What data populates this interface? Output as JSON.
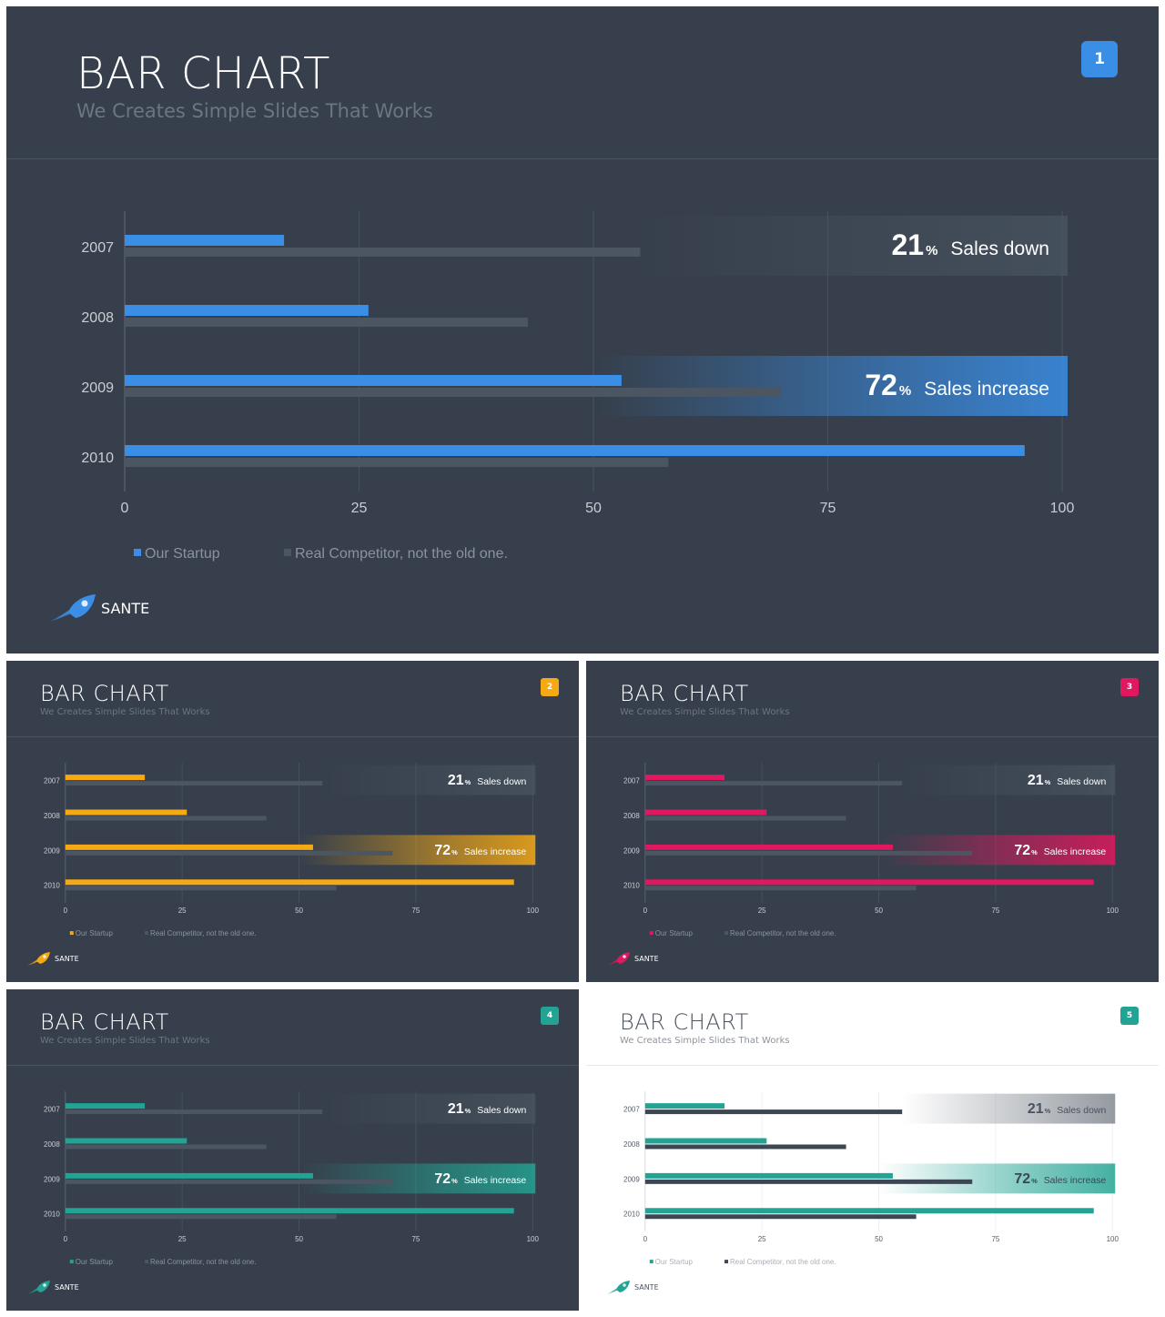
{
  "slides": [
    {
      "title": "BAR CHART",
      "subtitle": "We Creates Simple Slides That Works",
      "page_number": "1",
      "accent": "#3a8ee6",
      "theme": "dark",
      "brand": "SANTE"
    },
    {
      "title": "BAR CHART",
      "subtitle": "We Creates Simple Slides That Works",
      "page_number": "2",
      "accent": "#f5a914",
      "theme": "dark",
      "brand": "SANTE"
    },
    {
      "title": "BAR CHART",
      "subtitle": "We Creates Simple Slides That Works",
      "page_number": "3",
      "accent": "#e0185f",
      "theme": "dark",
      "brand": "SANTE"
    },
    {
      "title": "BAR CHART",
      "subtitle": "We Creates Simple Slides That Works",
      "page_number": "4",
      "accent": "#23a393",
      "theme": "dark",
      "brand": "SANTE"
    },
    {
      "title": "BAR CHART",
      "subtitle": "We Creates Simple Slides That Works",
      "page_number": "5",
      "accent": "#23a393",
      "theme": "light",
      "brand": "SANTE"
    }
  ],
  "chart_data": {
    "type": "bar",
    "orientation": "horizontal",
    "categories": [
      "2007",
      "2008",
      "2009",
      "2010"
    ],
    "series": [
      {
        "name": "Our Startup",
        "values": [
          17,
          26,
          53,
          96
        ]
      },
      {
        "name": "Real Competitor, not the old one.",
        "values": [
          55,
          43,
          70,
          58
        ]
      }
    ],
    "xlim": [
      0,
      100
    ],
    "xticks": [
      "0",
      "25",
      "50",
      "75",
      "100"
    ],
    "grid": true,
    "legend_position": "bottom-left",
    "annotations": [
      {
        "category": "2007",
        "value": "21",
        "unit": "%",
        "label": "Sales down",
        "style": "neutral"
      },
      {
        "category": "2009",
        "value": "72",
        "unit": "%",
        "label": "Sales increase",
        "style": "accent"
      }
    ]
  }
}
